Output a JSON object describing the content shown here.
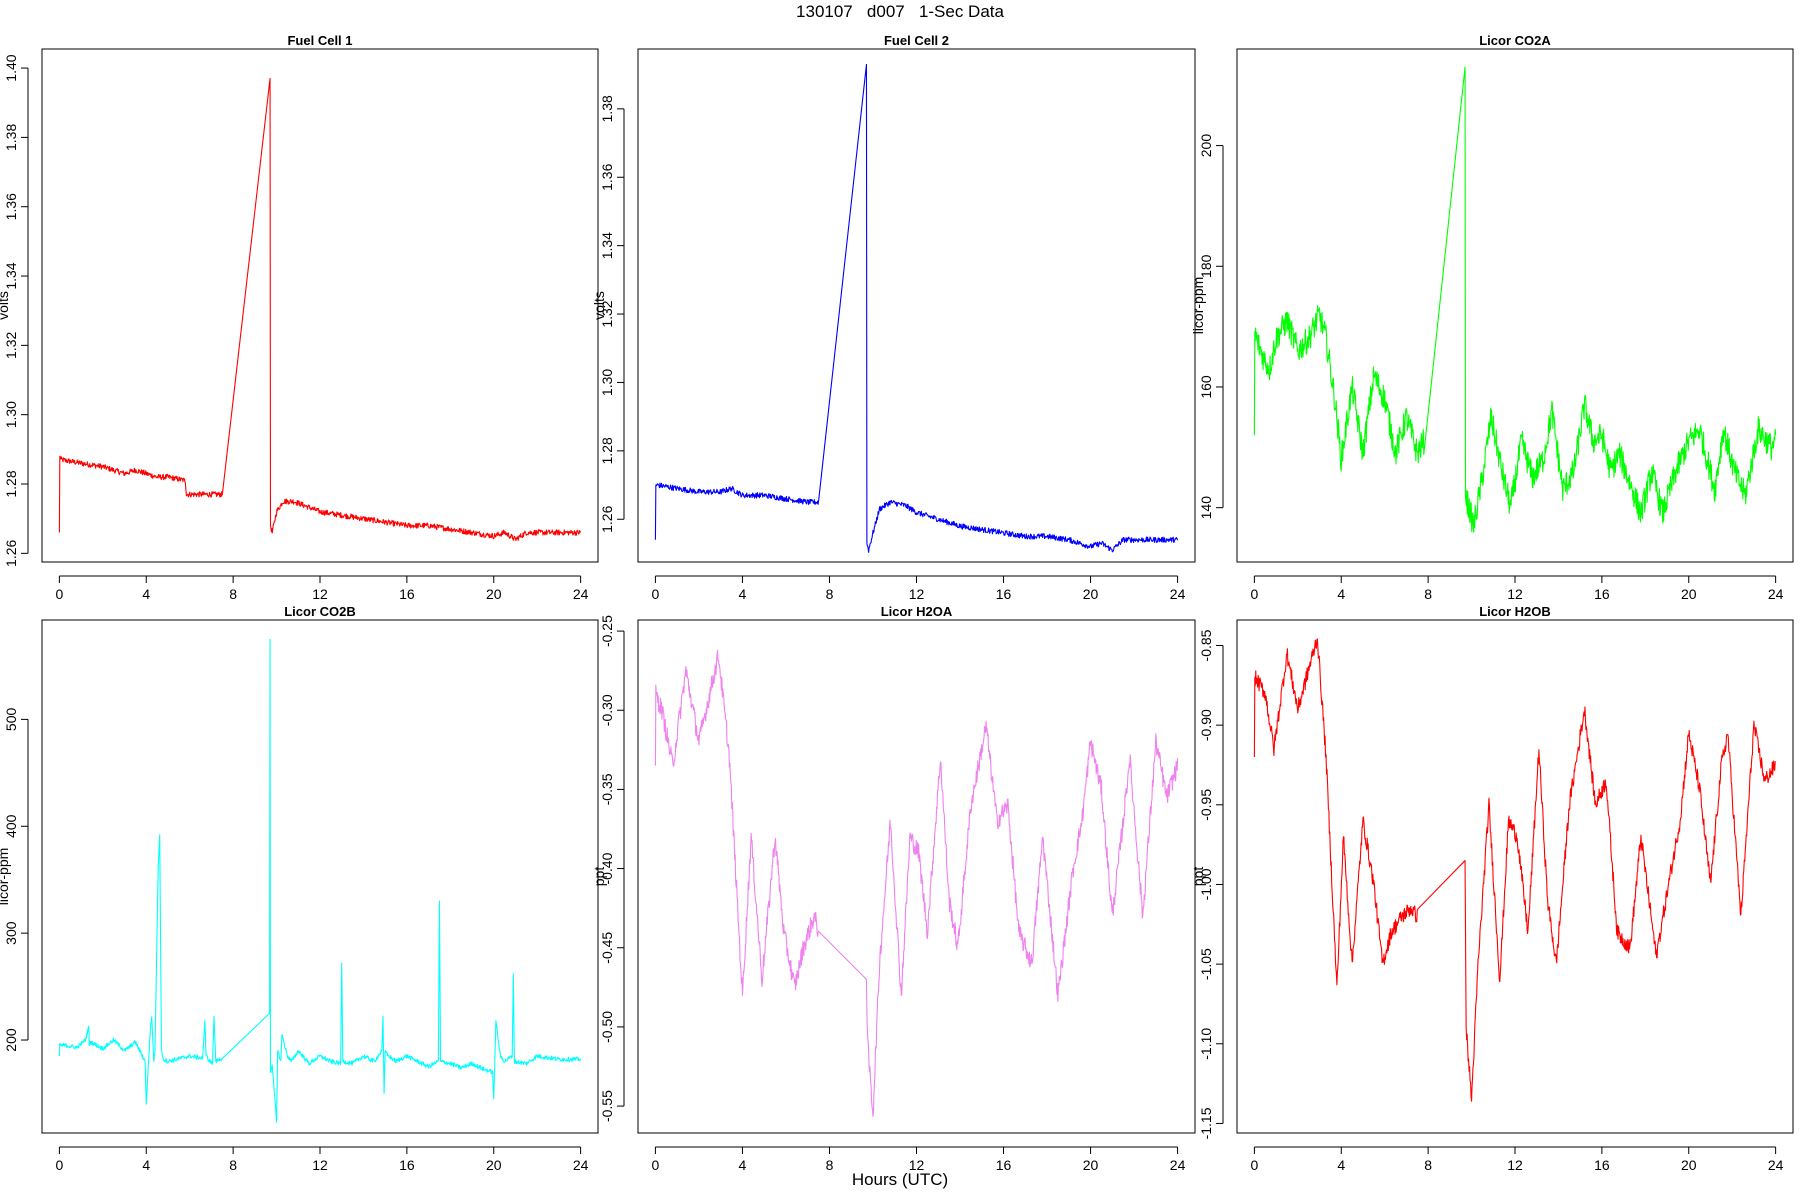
{
  "page": {
    "title": "130107   d007   1-Sec Data",
    "xlabel": "Hours (UTC)"
  },
  "chart_data": [
    {
      "type": "line",
      "title": "Fuel Cell 1",
      "xlabel": "",
      "ylabel": "volts",
      "color": "#ff0000",
      "xlim": [
        -0.8,
        24.8
      ],
      "ylim": [
        1.2575,
        1.4055
      ],
      "xticks": [
        0,
        4,
        8,
        12,
        16,
        20,
        24
      ],
      "yticks": [
        1.26,
        1.28,
        1.3,
        1.32,
        1.34,
        1.36,
        1.38,
        1.4
      ],
      "ytick_labels": [
        "1.26",
        "1.28",
        "1.30",
        "1.32",
        "1.34",
        "1.36",
        "1.38",
        "1.40"
      ],
      "noise": 0.0008,
      "x": [
        0,
        0.02,
        0.1,
        1,
        2,
        3,
        3.5,
        4,
        4.5,
        5,
        5.8,
        5.85,
        6.5,
        7,
        7.5,
        9.7,
        9.72,
        9.8,
        10,
        10.3,
        10.8,
        11.2,
        12,
        13,
        14,
        15,
        16,
        17,
        18,
        19,
        20,
        20.5,
        21,
        21.5,
        22,
        23,
        24
      ],
      "y": [
        1.266,
        1.288,
        1.287,
        1.286,
        1.285,
        1.283,
        1.284,
        1.283,
        1.282,
        1.282,
        1.281,
        1.277,
        1.277,
        1.277,
        1.277,
        1.397,
        1.268,
        1.266,
        1.272,
        1.275,
        1.275,
        1.274,
        1.272,
        1.271,
        1.27,
        1.269,
        1.268,
        1.268,
        1.267,
        1.266,
        1.265,
        1.266,
        1.264,
        1.266,
        1.266,
        1.266,
        1.266
      ]
    },
    {
      "type": "line",
      "title": "Fuel Cell 2",
      "xlabel": "",
      "ylabel": "volts",
      "color": "#0000ff",
      "xlim": [
        -0.8,
        24.8
      ],
      "ylim": [
        1.2475,
        1.3975
      ],
      "xticks": [
        0,
        4,
        8,
        12,
        16,
        20,
        24
      ],
      "yticks": [
        1.26,
        1.28,
        1.3,
        1.32,
        1.34,
        1.36,
        1.38
      ],
      "ytick_labels": [
        "1.26",
        "1.28",
        "1.30",
        "1.32",
        "1.34",
        "1.36",
        "1.38"
      ],
      "noise": 0.0008,
      "x": [
        0,
        0.02,
        0.1,
        1,
        2,
        3,
        3.5,
        4,
        5,
        6,
        7,
        7.5,
        9.7,
        9.72,
        9.8,
        10,
        10.3,
        10.8,
        11.5,
        12,
        13,
        14,
        15,
        16,
        17,
        18,
        19,
        20,
        20.5,
        21,
        21.5,
        22,
        23,
        24
      ],
      "y": [
        1.254,
        1.27,
        1.27,
        1.269,
        1.268,
        1.268,
        1.269,
        1.267,
        1.267,
        1.266,
        1.265,
        1.265,
        1.393,
        1.253,
        1.251,
        1.256,
        1.263,
        1.265,
        1.264,
        1.262,
        1.26,
        1.258,
        1.257,
        1.256,
        1.255,
        1.255,
        1.254,
        1.252,
        1.253,
        1.251,
        1.254,
        1.254,
        1.254,
        1.254
      ]
    },
    {
      "type": "line",
      "title": "Licor CO2A",
      "xlabel": "",
      "ylabel": "licor-ppm",
      "color": "#00ff00",
      "xlim": [
        -0.8,
        24.8
      ],
      "ylim": [
        131,
        216
      ],
      "xticks": [
        0,
        4,
        8,
        12,
        16,
        20,
        24
      ],
      "yticks": [
        140,
        160,
        180,
        200
      ],
      "ytick_labels": [
        "140",
        "160",
        "180",
        "200"
      ],
      "noise": 2.2,
      "x": [
        0,
        0.02,
        0.1,
        0.4,
        0.7,
        1,
        1.5,
        2,
        2.5,
        3,
        3.3,
        3.7,
        4.0,
        4.5,
        5,
        5.5,
        6,
        6.5,
        7,
        7.5,
        7.8,
        9.7,
        9.72,
        9.8,
        10.1,
        10.5,
        10.9,
        11.4,
        11.8,
        12.3,
        12.8,
        13.3,
        13.7,
        14.2,
        14.7,
        15.2,
        15.6,
        16.0,
        16.4,
        16.8,
        17.3,
        17.8,
        18.3,
        18.8,
        19.4,
        20,
        20.5,
        21.2,
        21.6,
        22.1,
        22.6,
        23.2,
        23.8,
        24
      ],
      "y": [
        152,
        169,
        168,
        165,
        163,
        168,
        171,
        166,
        168,
        172,
        168,
        158,
        148,
        160,
        149,
        162,
        158,
        149,
        155,
        149,
        151,
        213,
        142,
        141,
        137,
        145,
        155,
        146,
        140,
        151,
        145,
        148,
        156,
        143,
        146,
        157,
        151,
        152,
        146,
        149,
        144,
        139,
        146,
        139,
        146,
        151,
        153,
        143,
        153,
        146,
        142,
        153,
        150,
        151
      ]
    },
    {
      "type": "line",
      "title": "Licor CO2B",
      "xlabel": "",
      "ylabel": "licor-ppm",
      "color": "#00ffff",
      "xlim": [
        -0.8,
        24.8
      ],
      "ylim": [
        113,
        593
      ],
      "xticks": [
        0,
        4,
        8,
        12,
        16,
        20,
        24
      ],
      "yticks": [
        200,
        300,
        400,
        500
      ],
      "ytick_labels": [
        "200",
        "300",
        "400",
        "500"
      ],
      "noise": 2,
      "x": [
        0,
        0.02,
        0.3,
        0.8,
        1.2,
        1.35,
        1.38,
        1.45,
        2,
        2.5,
        3,
        3.5,
        3.95,
        4.0,
        4.2,
        4.25,
        4.35,
        4.4,
        4.55,
        4.62,
        4.7,
        4.8,
        5,
        6,
        6.6,
        6.7,
        6.75,
        6.85,
        7.05,
        7.12,
        7.2,
        7.5,
        9.68,
        9.7,
        9.72,
        9.8,
        10,
        10.05,
        10.2,
        10.25,
        10.5,
        10.7,
        11,
        11.5,
        12,
        12.5,
        12.95,
        13.0,
        13.05,
        13.5,
        14,
        14.5,
        14.85,
        14.9,
        14.95,
        15,
        15.1,
        15.5,
        16,
        16.5,
        17,
        17.45,
        17.5,
        17.55,
        18,
        18.5,
        19,
        19.5,
        19.95,
        20,
        20.1,
        20.3,
        20.5,
        20.85,
        20.9,
        20.95,
        21.5,
        22,
        23,
        24
      ],
      "y": [
        185,
        195,
        195,
        193,
        200,
        212,
        195,
        198,
        192,
        200,
        190,
        198,
        180,
        140,
        215,
        220,
        180,
        190,
        360,
        392,
        190,
        182,
        180,
        185,
        183,
        218,
        186,
        182,
        178,
        222,
        180,
        183,
        225,
        575,
        170,
        175,
        125,
        190,
        180,
        205,
        185,
        180,
        190,
        178,
        185,
        180,
        178,
        272,
        180,
        178,
        185,
        180,
        190,
        222,
        150,
        190,
        186,
        180,
        185,
        180,
        175,
        180,
        330,
        180,
        178,
        174,
        178,
        173,
        170,
        145,
        218,
        185,
        180,
        185,
        262,
        180,
        178,
        185,
        182,
        182
      ]
    },
    {
      "type": "line",
      "title": "Licor H2OA",
      "xlabel": "",
      "ylabel": "ppt",
      "color": "#ee82ee",
      "xlim": [
        -0.8,
        24.8
      ],
      "ylim": [
        -0.567,
        -0.243
      ],
      "xticks": [
        0,
        4,
        8,
        12,
        16,
        20,
        24
      ],
      "yticks": [
        -0.55,
        -0.5,
        -0.45,
        -0.4,
        -0.35,
        -0.3,
        -0.25
      ],
      "ytick_labels": [
        "-0.55",
        "-0.50",
        "-0.45",
        "-0.40",
        "-0.35",
        "-0.30",
        "-0.25"
      ],
      "noise": 0.006,
      "x": [
        0,
        0.02,
        0.3,
        0.8,
        1.4,
        2,
        2.9,
        3.4,
        4.0,
        4.4,
        4.9,
        5.5,
        5.9,
        6.4,
        6.8,
        7.3,
        7.5,
        9.7,
        9.75,
        10.0,
        10.3,
        10.8,
        11.3,
        11.7,
        12.1,
        12.5,
        13.1,
        13.5,
        13.9,
        14.5,
        15.2,
        15.7,
        16.2,
        16.7,
        17.3,
        17.8,
        18.5,
        19.2,
        19.6,
        20.0,
        20.5,
        21.0,
        21.5,
        21.8,
        22.4,
        23.0,
        23.5,
        24
      ],
      "y": [
        -0.335,
        -0.29,
        -0.3,
        -0.335,
        -0.275,
        -0.32,
        -0.265,
        -0.33,
        -0.48,
        -0.38,
        -0.47,
        -0.38,
        -0.44,
        -0.475,
        -0.45,
        -0.43,
        -0.44,
        -0.47,
        -0.51,
        -0.555,
        -0.46,
        -0.37,
        -0.48,
        -0.38,
        -0.39,
        -0.44,
        -0.33,
        -0.42,
        -0.45,
        -0.36,
        -0.31,
        -0.37,
        -0.36,
        -0.44,
        -0.46,
        -0.38,
        -0.48,
        -0.4,
        -0.37,
        -0.32,
        -0.35,
        -0.43,
        -0.37,
        -0.33,
        -0.43,
        -0.32,
        -0.355,
        -0.335
      ]
    },
    {
      "type": "line",
      "title": "Licor H2OB",
      "xlabel": "",
      "ylabel": "ppt",
      "color": "#ff0000",
      "xlim": [
        -0.8,
        24.8
      ],
      "ylim": [
        -1.156,
        -0.834
      ],
      "xticks": [
        0,
        4,
        8,
        12,
        16,
        20,
        24
      ],
      "yticks": [
        -1.15,
        -1.1,
        -1.05,
        -1.0,
        -0.95,
        -0.9,
        -0.85
      ],
      "ytick_labels": [
        "-1.15",
        "-1.10",
        "-1.05",
        "-1.00",
        "-0.95",
        "-0.90",
        "-0.85"
      ],
      "noise": 0.005,
      "x": [
        0,
        0.02,
        0.5,
        0.9,
        1.5,
        2,
        2.9,
        3.3,
        3.8,
        4.1,
        4.5,
        5.0,
        5.5,
        5.9,
        6.3,
        6.8,
        7.2,
        7.5,
        9.7,
        9.75,
        10.0,
        10.3,
        10.8,
        11.3,
        11.7,
        12.1,
        12.6,
        13.1,
        13.5,
        13.9,
        14.5,
        15.2,
        15.7,
        16.2,
        16.7,
        17.3,
        17.8,
        18.5,
        19.2,
        19.6,
        20.0,
        20.5,
        21.0,
        21.5,
        21.8,
        22.4,
        23.0,
        23.5,
        24
      ],
      "y": [
        -0.92,
        -0.87,
        -0.88,
        -0.915,
        -0.855,
        -0.89,
        -0.845,
        -0.92,
        -1.065,
        -0.97,
        -1.05,
        -0.96,
        -1.0,
        -1.05,
        -1.03,
        -1.02,
        -1.015,
        -1.02,
        -0.985,
        -1.09,
        -1.135,
        -1.05,
        -0.95,
        -1.06,
        -0.96,
        -0.97,
        -1.03,
        -0.915,
        -1.01,
        -1.05,
        -0.95,
        -0.89,
        -0.95,
        -0.935,
        -1.03,
        -1.04,
        -0.97,
        -1.045,
        -0.99,
        -0.96,
        -0.905,
        -0.94,
        -1.0,
        -0.925,
        -0.905,
        -1.02,
        -0.9,
        -0.935,
        -0.925
      ]
    }
  ]
}
